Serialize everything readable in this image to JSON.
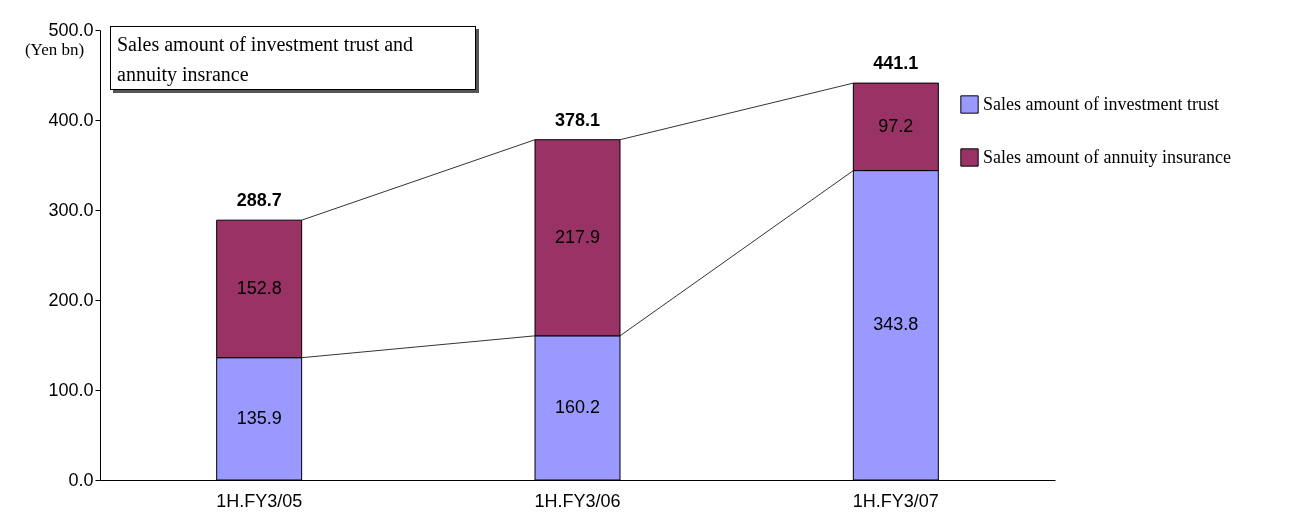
{
  "chart_data": {
    "type": "bar",
    "title": "Sales amount of investment trust and annuity insrance",
    "ylabel": "(Yen bn)",
    "categories": [
      "1H.FY3/05",
      "1H.FY3/06",
      "1H.FY3/07"
    ],
    "series": [
      {
        "name": "Sales amount of investment trust",
        "color": "#9999ff",
        "values": [
          135.9,
          160.2,
          343.8
        ]
      },
      {
        "name": "Sales amount of annuity insurance",
        "color": "#993366",
        "values": [
          152.8,
          217.9,
          97.2
        ]
      }
    ],
    "stacked": true,
    "data_labels": true,
    "totals": [
      "288.7",
      "378.1",
      "441.1"
    ],
    "ylim": [
      0,
      500
    ],
    "yticks": [
      {
        "value": 0,
        "label": "0.0"
      },
      {
        "value": 100,
        "label": "100.0"
      },
      {
        "value": 200,
        "label": "200.0"
      },
      {
        "value": 300,
        "label": "300.0"
      },
      {
        "value": 400,
        "label": "400.0"
      },
      {
        "value": 500,
        "label": "500.0"
      }
    ],
    "legend": "right",
    "grid": false
  }
}
